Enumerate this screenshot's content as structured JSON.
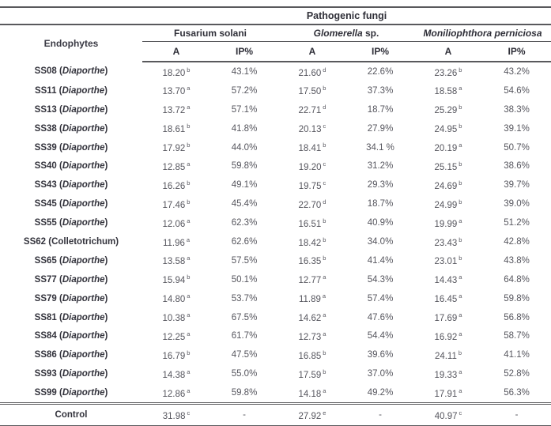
{
  "table": {
    "group_header": "Pathogenic fungi",
    "endophytes_header": "Endophytes",
    "format": {
      "space_paren": " (",
      "paren_close": ")"
    },
    "line_color": "#59595c",
    "species": [
      {
        "italic_part": "",
        "roman_part": "Fusarium solani"
      },
      {
        "italic_part": "Glomerella",
        "roman_part": " sp."
      },
      {
        "italic_part": "Moniliophthora perniciosa",
        "roman_part": ""
      }
    ],
    "subheaders": [
      "A",
      "IP%",
      "A",
      "IP%",
      "A",
      "IP%"
    ],
    "rows": [
      {
        "code": "SS08",
        "genus": "Diaporthe",
        "genus_italic": true,
        "values": [
          {
            "v": "18.20",
            "s": "b"
          },
          {
            "v": "43.1%"
          },
          {
            "v": "21.60",
            "s": "d"
          },
          {
            "v": "22.6%"
          },
          {
            "v": "23.26",
            "s": "b"
          },
          {
            "v": "43.2%"
          }
        ]
      },
      {
        "code": "SS11",
        "genus": "Diaporthe",
        "genus_italic": true,
        "values": [
          {
            "v": "13.70",
            "s": "a"
          },
          {
            "v": "57.2%"
          },
          {
            "v": "17.50",
            "s": "b"
          },
          {
            "v": "37.3%"
          },
          {
            "v": "18.58",
            "s": "a"
          },
          {
            "v": "54.6%"
          }
        ]
      },
      {
        "code": "SS13",
        "genus": "Diaporthe",
        "genus_italic": true,
        "values": [
          {
            "v": "13.72",
            "s": "a"
          },
          {
            "v": "57.1%"
          },
          {
            "v": "22.71",
            "s": "d"
          },
          {
            "v": "18.7%"
          },
          {
            "v": "25.29",
            "s": "b"
          },
          {
            "v": "38.3%"
          }
        ]
      },
      {
        "code": "SS38",
        "genus": "Diaporthe",
        "genus_italic": true,
        "values": [
          {
            "v": "18.61",
            "s": "b"
          },
          {
            "v": "41.8%"
          },
          {
            "v": "20.13",
            "s": "c"
          },
          {
            "v": "27.9%"
          },
          {
            "v": "24.95",
            "s": "b"
          },
          {
            "v": "39.1%"
          }
        ]
      },
      {
        "code": "SS39",
        "genus": "Diaporthe",
        "genus_italic": true,
        "values": [
          {
            "v": "17.92",
            "s": "b"
          },
          {
            "v": "44.0%"
          },
          {
            "v": "18.41",
            "s": "b"
          },
          {
            "v": "34.1 %"
          },
          {
            "v": "20.19",
            "s": "a"
          },
          {
            "v": "50.7%"
          }
        ]
      },
      {
        "code": "SS40",
        "genus": "Diaporthe",
        "genus_italic": true,
        "values": [
          {
            "v": "12.85",
            "s": "a"
          },
          {
            "v": "59.8%"
          },
          {
            "v": "19.20",
            "s": "c"
          },
          {
            "v": "31.2%"
          },
          {
            "v": "25.15",
            "s": "b"
          },
          {
            "v": "38.6%"
          }
        ]
      },
      {
        "code": "SS43",
        "genus": "Diaporthe",
        "genus_italic": true,
        "values": [
          {
            "v": "16.26",
            "s": "b"
          },
          {
            "v": "49.1%"
          },
          {
            "v": "19.75",
            "s": "c"
          },
          {
            "v": "29.3%"
          },
          {
            "v": "24.69",
            "s": "b"
          },
          {
            "v": "39.7%"
          }
        ]
      },
      {
        "code": "SS45",
        "genus": "Diaporthe",
        "genus_italic": true,
        "values": [
          {
            "v": "17.46",
            "s": "b"
          },
          {
            "v": "45.4%"
          },
          {
            "v": "22.70",
            "s": "d"
          },
          {
            "v": "18.7%"
          },
          {
            "v": "24.99",
            "s": "b"
          },
          {
            "v": "39.0%"
          }
        ]
      },
      {
        "code": "SS55",
        "genus": "Diaporthe",
        "genus_italic": true,
        "values": [
          {
            "v": "12.06",
            "s": "a"
          },
          {
            "v": "62.3%"
          },
          {
            "v": "16.51",
            "s": "b"
          },
          {
            "v": "40.9%"
          },
          {
            "v": "19.99",
            "s": "a"
          },
          {
            "v": "51.2%"
          }
        ]
      },
      {
        "code": "SS62",
        "genus": "Colletotrichum",
        "genus_italic": false,
        "values": [
          {
            "v": "11.96",
            "s": "a"
          },
          {
            "v": "62.6%"
          },
          {
            "v": "18.42",
            "s": "b"
          },
          {
            "v": "34.0%"
          },
          {
            "v": "23.43",
            "s": "b"
          },
          {
            "v": "42.8%"
          }
        ]
      },
      {
        "code": "SS65",
        "genus": "Diaporthe",
        "genus_italic": true,
        "values": [
          {
            "v": "13.58",
            "s": "a"
          },
          {
            "v": "57.5%"
          },
          {
            "v": "16.35",
            "s": "b"
          },
          {
            "v": "41.4%"
          },
          {
            "v": "23.01",
            "s": "b"
          },
          {
            "v": "43.8%"
          }
        ]
      },
      {
        "code": "SS77",
        "genus": "Diaporthe",
        "genus_italic": true,
        "values": [
          {
            "v": "15.94",
            "s": "b"
          },
          {
            "v": "50.1%"
          },
          {
            "v": "12.77",
            "s": "a"
          },
          {
            "v": "54.3%"
          },
          {
            "v": "14.43",
            "s": "a"
          },
          {
            "v": "64.8%"
          }
        ]
      },
      {
        "code": "SS79",
        "genus": "Diaporthe",
        "genus_italic": true,
        "values": [
          {
            "v": "14.80",
            "s": "a"
          },
          {
            "v": "53.7%"
          },
          {
            "v": "11.89",
            "s": "a"
          },
          {
            "v": "57.4%"
          },
          {
            "v": "16.45",
            "s": "a"
          },
          {
            "v": "59.8%"
          }
        ]
      },
      {
        "code": "SS81",
        "genus": "Diaporthe",
        "genus_italic": true,
        "values": [
          {
            "v": "10.38",
            "s": "a"
          },
          {
            "v": "67.5%"
          },
          {
            "v": "14.62",
            "s": "a"
          },
          {
            "v": "47.6%"
          },
          {
            "v": "17.69",
            "s": "a"
          },
          {
            "v": "56.8%"
          }
        ]
      },
      {
        "code": "SS84",
        "genus": "Diaporthe",
        "genus_italic": true,
        "values": [
          {
            "v": "12.25",
            "s": "a"
          },
          {
            "v": "61.7%"
          },
          {
            "v": "12.73",
            "s": "a"
          },
          {
            "v": "54.4%"
          },
          {
            "v": "16.92",
            "s": "a"
          },
          {
            "v": "58.7%"
          }
        ]
      },
      {
        "code": "SS86",
        "genus": "Diaporthe",
        "genus_italic": true,
        "values": [
          {
            "v": "16.79",
            "s": "b"
          },
          {
            "v": "47.5%"
          },
          {
            "v": "16.85",
            "s": "b"
          },
          {
            "v": "39.6%"
          },
          {
            "v": "24.11",
            "s": "b"
          },
          {
            "v": "41.1%"
          }
        ]
      },
      {
        "code": "SS93",
        "genus": "Diaporthe",
        "genus_italic": true,
        "values": [
          {
            "v": "14.38",
            "s": "a"
          },
          {
            "v": "55.0%"
          },
          {
            "v": "17.59",
            "s": "b"
          },
          {
            "v": "37.0%"
          },
          {
            "v": "19.33",
            "s": "a"
          },
          {
            "v": "52.8%"
          }
        ]
      },
      {
        "code": "SS99",
        "genus": "Diaporthe",
        "genus_italic": true,
        "values": [
          {
            "v": "12.86",
            "s": "a"
          },
          {
            "v": "59.8%"
          },
          {
            "v": "14.18",
            "s": "a"
          },
          {
            "v": "49.2%"
          },
          {
            "v": "17.91",
            "s": "a"
          },
          {
            "v": "56.3%"
          }
        ]
      }
    ],
    "control": {
      "label": "Control",
      "values": [
        {
          "v": "31.98",
          "s": "c"
        },
        {
          "v": "-"
        },
        {
          "v": "27.92",
          "s": "e"
        },
        {
          "v": "-"
        },
        {
          "v": "40.97",
          "s": "c"
        },
        {
          "v": "-"
        }
      ]
    }
  }
}
